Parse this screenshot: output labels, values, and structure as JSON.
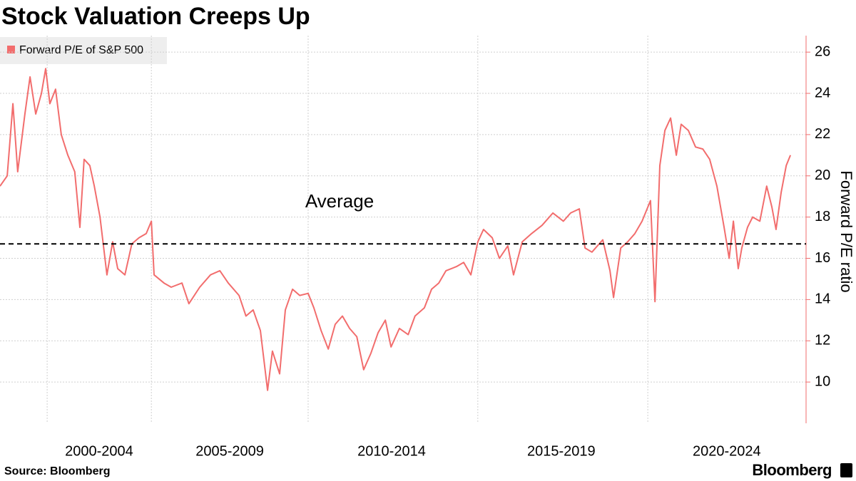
{
  "chart_data": {
    "type": "line",
    "title": "Stock Valuation Creeps Up",
    "y_label": "Forward P/E ratio",
    "source": "Source: Bloomberg",
    "brand": "Bloomberg",
    "legend": "top-left",
    "grid": true,
    "xlim": [
      1998.43,
      2025.27
    ],
    "ylim": [
      8,
      26.8
    ],
    "yticks": [
      10,
      12,
      14,
      16,
      18,
      20,
      22,
      24,
      26
    ],
    "xticks": [
      {
        "value": 2001.73,
        "label": "2000-2004"
      },
      {
        "value": 2006.08,
        "label": "2005-2009"
      },
      {
        "value": 2011.47,
        "label": "2010-2014"
      },
      {
        "value": 2017.12,
        "label": "2015-2019"
      },
      {
        "value": 2022.63,
        "label": "2020-2024"
      }
    ],
    "x_gridlines": [
      2000,
      2003.47,
      2008.69,
      2014.34,
      2020.0
    ],
    "average": {
      "label": "Average",
      "value": 16.7
    },
    "x": [
      1998.43,
      1998.67,
      1998.86,
      1999.02,
      1999.26,
      1999.43,
      1999.62,
      1999.81,
      1999.95,
      2000.09,
      2000.28,
      2000.47,
      2000.69,
      2000.92,
      2001.09,
      2001.23,
      2001.42,
      2001.57,
      2001.76,
      2001.99,
      2002.18,
      2002.35,
      2002.59,
      2002.82,
      2003.06,
      2003.3,
      2003.47,
      2003.56,
      2003.89,
      2004.13,
      2004.49,
      2004.72,
      2005.08,
      2005.44,
      2005.75,
      2006.03,
      2006.39,
      2006.62,
      2006.86,
      2007.1,
      2007.34,
      2007.5,
      2007.74,
      2007.93,
      2008.17,
      2008.41,
      2008.69,
      2008.88,
      2009.12,
      2009.36,
      2009.59,
      2009.83,
      2010.07,
      2010.31,
      2010.54,
      2010.78,
      2011.02,
      2011.26,
      2011.45,
      2011.73,
      2012.02,
      2012.25,
      2012.56,
      2012.8,
      2013.04,
      2013.28,
      2013.63,
      2013.87,
      2014.11,
      2014.34,
      2014.53,
      2014.82,
      2015.06,
      2015.34,
      2015.53,
      2015.82,
      2016.13,
      2016.48,
      2016.84,
      2017.19,
      2017.43,
      2017.72,
      2017.91,
      2018.14,
      2018.5,
      2018.74,
      2018.86,
      2019.1,
      2019.33,
      2019.57,
      2019.81,
      2020.09,
      2020.24,
      2020.4,
      2020.57,
      2020.76,
      2020.95,
      2021.11,
      2021.35,
      2021.59,
      2021.83,
      2022.06,
      2022.3,
      2022.54,
      2022.71,
      2022.85,
      2023.01,
      2023.13,
      2023.32,
      2023.49,
      2023.73,
      2023.96,
      2024.13,
      2024.27,
      2024.44,
      2024.61,
      2024.75
    ],
    "series": [
      {
        "name": "Forward P/E of S&P 500",
        "color": "#f26d6d",
        "values": [
          19.5,
          20.0,
          23.5,
          20.2,
          23.0,
          24.8,
          23.0,
          24.0,
          25.2,
          23.5,
          24.2,
          22.0,
          21.0,
          20.2,
          17.5,
          20.8,
          20.5,
          19.5,
          18.0,
          15.2,
          16.8,
          15.5,
          15.2,
          16.7,
          17.0,
          17.2,
          17.8,
          15.2,
          14.8,
          14.6,
          14.8,
          13.8,
          14.6,
          15.2,
          15.4,
          14.8,
          14.2,
          13.2,
          13.5,
          12.5,
          9.6,
          11.5,
          10.4,
          13.5,
          14.5,
          14.2,
          14.3,
          13.6,
          12.5,
          11.6,
          12.8,
          13.2,
          12.6,
          12.2,
          10.6,
          11.4,
          12.4,
          13.0,
          11.7,
          12.6,
          12.3,
          13.2,
          13.6,
          14.5,
          14.8,
          15.4,
          15.6,
          15.8,
          15.2,
          16.8,
          17.4,
          17.0,
          16.0,
          16.6,
          15.2,
          16.8,
          17.2,
          17.6,
          18.2,
          17.8,
          18.2,
          18.4,
          16.5,
          16.3,
          16.9,
          15.4,
          14.1,
          16.5,
          16.8,
          17.2,
          17.8,
          18.8,
          13.9,
          20.5,
          22.2,
          22.8,
          21.0,
          22.5,
          22.2,
          21.4,
          21.3,
          20.8,
          19.5,
          17.5,
          16.0,
          17.8,
          15.5,
          16.5,
          17.5,
          18.0,
          17.8,
          19.5,
          18.5,
          17.4,
          19.2,
          20.5,
          21.0
        ]
      }
    ]
  }
}
